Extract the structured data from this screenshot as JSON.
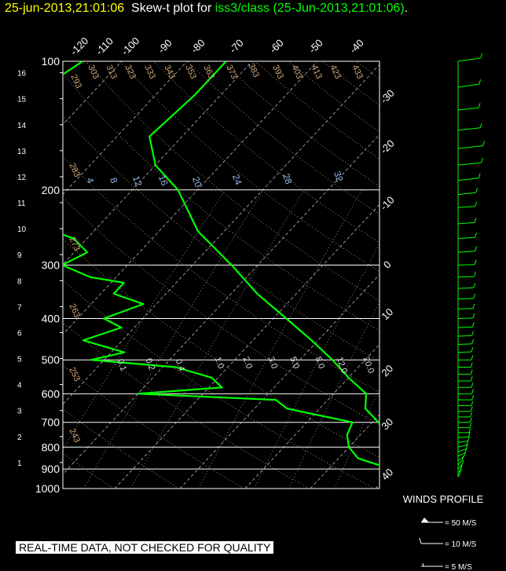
{
  "header": {
    "timestamp": "25-jun-2013,21:01:06",
    "title_prefix": "Skew-t plot for",
    "source": "iss3/class (25-Jun-2013,21:01:06)",
    "title_suffix": "."
  },
  "quality_banner": "REAL-TIME DATA, NOT CHECKED FOR QUALITY",
  "colors": {
    "background": "#000000",
    "timestamp": "#ffff00",
    "trace": "#00ff00",
    "isotherm": "#ffffff",
    "dry_adiabat": "#d2a679",
    "mixing_ratio": "#8fb8e6"
  },
  "chart_data": {
    "type": "line",
    "pressure_levels": [
      100,
      200,
      300,
      400,
      500,
      600,
      700,
      800,
      900,
      1000
    ],
    "plim": [
      100,
      1000
    ],
    "height_km_ticks": [
      1,
      2,
      3,
      4,
      5,
      6,
      7,
      8,
      9,
      10,
      11,
      12,
      13,
      14,
      15,
      16
    ],
    "isotherm_top_labels": [
      "-120",
      "-110",
      "-100",
      "-90",
      "-80",
      "-70",
      "-60",
      "-50",
      "-40"
    ],
    "isotherm_right_labels": [
      "-30",
      "-20",
      "-10",
      "0",
      "10",
      "20",
      "30",
      "40"
    ],
    "dry_adiabat_labels": [
      "293",
      "303",
      "313",
      "323",
      "333",
      "343",
      "353",
      "363",
      "373",
      "383",
      "393",
      "403",
      "413",
      "423",
      "433",
      "283",
      "273",
      "263",
      "253",
      "243"
    ],
    "mixing_ratio_labels": [
      "4",
      "8",
      "12",
      "16",
      "20",
      "24",
      "28",
      "32"
    ],
    "mixing_ratio_lower_labels": [
      "0.1",
      "0.2",
      "0.4",
      "1.0",
      "2.0",
      "3.0",
      "5.0",
      "8.0",
      "12.0",
      "20.0"
    ],
    "series": [
      {
        "name": "temperature",
        "points": [
          [
            100,
            -74
          ],
          [
            120,
            -74
          ],
          [
            150,
            -75
          ],
          [
            175,
            -70
          ],
          [
            200,
            -63
          ],
          [
            250,
            -54
          ],
          [
            300,
            -44
          ],
          [
            350,
            -36
          ],
          [
            400,
            -28
          ],
          [
            450,
            -21
          ],
          [
            500,
            -15
          ],
          [
            550,
            -10
          ],
          [
            600,
            -5
          ],
          [
            650,
            -3
          ],
          [
            700,
            1
          ],
          [
            750,
            5
          ],
          [
            800,
            9
          ],
          [
            850,
            14
          ],
          [
            900,
            17
          ],
          [
            950,
            21
          ],
          [
            1000,
            26
          ]
        ]
      },
      {
        "name": "dewpoint",
        "points": [
          [
            100,
            -96
          ],
          [
            120,
            -99
          ],
          [
            150,
            -104
          ],
          [
            175,
            -102
          ],
          [
            190,
            -90
          ],
          [
            200,
            -90
          ],
          [
            230,
            -85
          ],
          [
            260,
            -72
          ],
          [
            280,
            -68
          ],
          [
            300,
            -70
          ],
          [
            320,
            -64
          ],
          [
            330,
            -58
          ],
          [
            350,
            -58
          ],
          [
            370,
            -52
          ],
          [
            400,
            -56
          ],
          [
            420,
            -52
          ],
          [
            450,
            -56
          ],
          [
            480,
            -48
          ],
          [
            500,
            -52
          ],
          [
            520,
            -38
          ],
          [
            550,
            -31
          ],
          [
            580,
            -28
          ],
          [
            600,
            -40
          ],
          [
            620,
            -18
          ],
          [
            650,
            -15
          ],
          [
            700,
            -3
          ],
          [
            750,
            -2
          ],
          [
            800,
            0
          ],
          [
            850,
            3
          ],
          [
            880,
            7
          ],
          [
            900,
            16
          ],
          [
            950,
            18
          ],
          [
            1000,
            18
          ]
        ]
      }
    ]
  },
  "winds": {
    "title": "WINDS PROFILE",
    "legend": [
      "= 50 M/S",
      "= 10 M/S",
      "= 5 M/S"
    ],
    "barbs": [
      {
        "p": 100,
        "spd": 30,
        "dir": 250
      },
      {
        "p": 115,
        "spd": 27,
        "dir": 250
      },
      {
        "p": 130,
        "spd": 25,
        "dir": 255
      },
      {
        "p": 145,
        "spd": 28,
        "dir": 255
      },
      {
        "p": 160,
        "spd": 33,
        "dir": 255
      },
      {
        "p": 175,
        "spd": 30,
        "dir": 255
      },
      {
        "p": 190,
        "spd": 25,
        "dir": 255
      },
      {
        "p": 205,
        "spd": 20,
        "dir": 255
      },
      {
        "p": 220,
        "spd": 18,
        "dir": 260
      },
      {
        "p": 240,
        "spd": 17,
        "dir": 260
      },
      {
        "p": 260,
        "spd": 18,
        "dir": 260
      },
      {
        "p": 280,
        "spd": 18,
        "dir": 260
      },
      {
        "p": 300,
        "spd": 17,
        "dir": 265
      },
      {
        "p": 320,
        "spd": 16,
        "dir": 265
      },
      {
        "p": 340,
        "spd": 15,
        "dir": 265
      },
      {
        "p": 360,
        "spd": 15,
        "dir": 265
      },
      {
        "p": 380,
        "spd": 14,
        "dir": 265
      },
      {
        "p": 400,
        "spd": 14,
        "dir": 265
      },
      {
        "p": 420,
        "spd": 13,
        "dir": 265
      },
      {
        "p": 440,
        "spd": 12,
        "dir": 265
      },
      {
        "p": 460,
        "spd": 12,
        "dir": 265
      },
      {
        "p": 480,
        "spd": 11,
        "dir": 265
      },
      {
        "p": 500,
        "spd": 11,
        "dir": 270
      },
      {
        "p": 520,
        "spd": 10,
        "dir": 270
      },
      {
        "p": 540,
        "spd": 10,
        "dir": 270
      },
      {
        "p": 560,
        "spd": 10,
        "dir": 270
      },
      {
        "p": 580,
        "spd": 11,
        "dir": 270
      },
      {
        "p": 600,
        "spd": 12,
        "dir": 270
      },
      {
        "p": 620,
        "spd": 12,
        "dir": 270
      },
      {
        "p": 640,
        "spd": 11,
        "dir": 270
      },
      {
        "p": 660,
        "spd": 10,
        "dir": 270
      },
      {
        "p": 680,
        "spd": 9,
        "dir": 270
      },
      {
        "p": 700,
        "spd": 9,
        "dir": 270
      },
      {
        "p": 720,
        "spd": 8,
        "dir": 270
      },
      {
        "p": 740,
        "spd": 7,
        "dir": 270
      },
      {
        "p": 760,
        "spd": 6,
        "dir": 260
      },
      {
        "p": 780,
        "spd": 6,
        "dir": 250
      },
      {
        "p": 800,
        "spd": 5,
        "dir": 240
      },
      {
        "p": 820,
        "spd": 6,
        "dir": 230
      },
      {
        "p": 840,
        "spd": 7,
        "dir": 220
      },
      {
        "p": 860,
        "spd": 8,
        "dir": 210
      },
      {
        "p": 880,
        "spd": 8,
        "dir": 200
      },
      {
        "p": 900,
        "spd": 7,
        "dir": 200
      },
      {
        "p": 920,
        "spd": 6,
        "dir": 195
      },
      {
        "p": 940,
        "spd": 5,
        "dir": 190
      }
    ]
  }
}
